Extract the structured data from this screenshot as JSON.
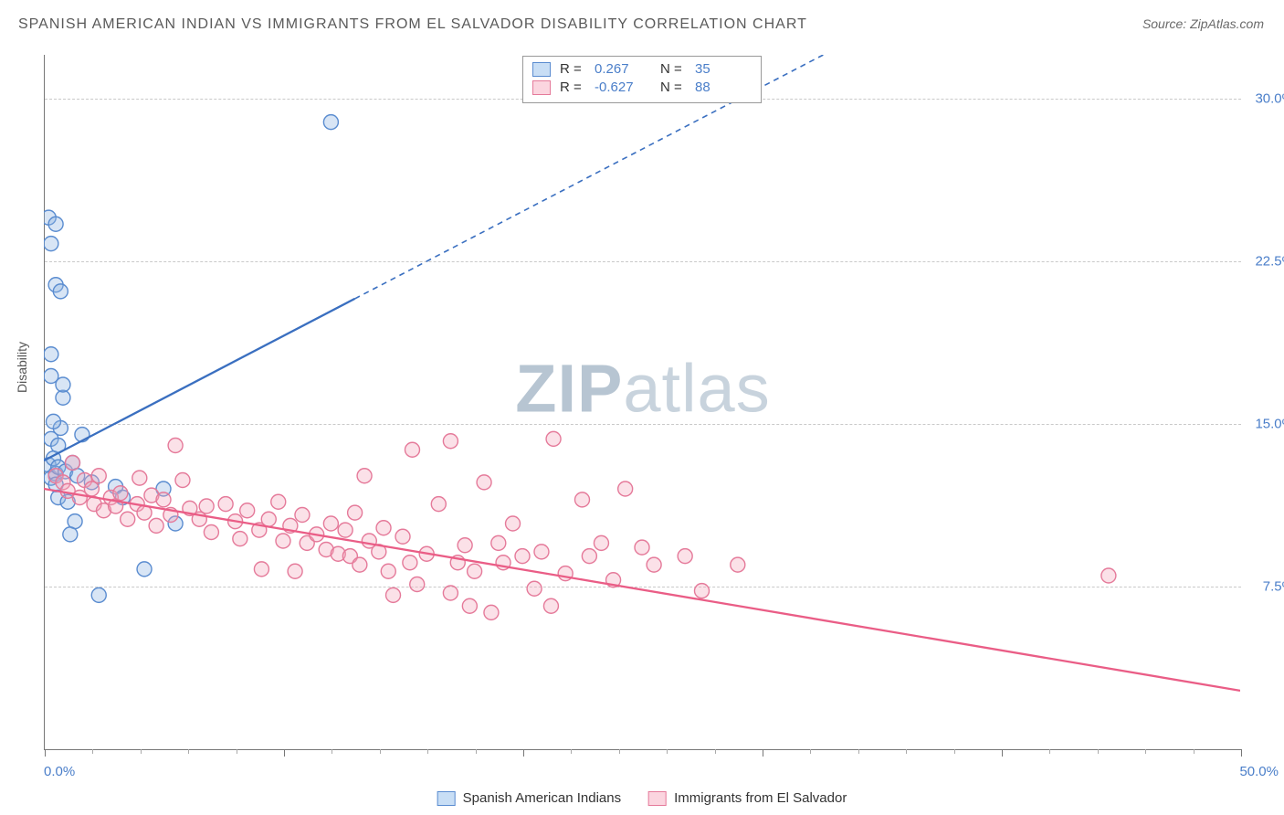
{
  "title": "SPANISH AMERICAN INDIAN VS IMMIGRANTS FROM EL SALVADOR DISABILITY CORRELATION CHART",
  "source": "Source: ZipAtlas.com",
  "watermark": {
    "a": "ZIP",
    "b": "atlas"
  },
  "ylabel": "Disability",
  "chart": {
    "type": "scatter",
    "xlim": [
      0,
      50
    ],
    "ylim": [
      0,
      32
    ],
    "y_ticks": [
      7.5,
      15.0,
      22.5,
      30.0
    ],
    "y_tick_labels": [
      "7.5%",
      "15.0%",
      "22.5%",
      "30.0%"
    ],
    "x_ticks_major": [
      0,
      10,
      20,
      30,
      40,
      50
    ],
    "x_ticks_minor": [
      2,
      4,
      6,
      8,
      12,
      14,
      16,
      18,
      22,
      24,
      26,
      28,
      32,
      34,
      36,
      38,
      42,
      44,
      46,
      48
    ],
    "x_tick_labels": {
      "start": "0.0%",
      "end": "50.0%"
    },
    "background_color": "#ffffff",
    "grid_color": "#c9c9c9",
    "marker_radius": 8,
    "series": [
      {
        "name": "Spanish American Indians",
        "color_fill": "#8fb4e3",
        "color_stroke": "#5a8cd0",
        "R": "0.267",
        "N": "35",
        "trend": {
          "x1": 0,
          "y1": 13.3,
          "x2": 50,
          "y2": 42.0,
          "solid_until_x": 13,
          "color": "#3a6fc0"
        },
        "points": [
          [
            0.2,
            13.1
          ],
          [
            0.3,
            12.5
          ],
          [
            0.3,
            14.3
          ],
          [
            0.4,
            13.4
          ],
          [
            0.5,
            12.7
          ],
          [
            0.6,
            13.0
          ],
          [
            0.7,
            14.8
          ],
          [
            0.4,
            15.1
          ],
          [
            0.6,
            14.0
          ],
          [
            0.8,
            16.2
          ],
          [
            0.8,
            16.8
          ],
          [
            0.3,
            18.2
          ],
          [
            0.5,
            12.2
          ],
          [
            0.6,
            11.6
          ],
          [
            0.9,
            12.8
          ],
          [
            1.2,
            13.2
          ],
          [
            1.0,
            11.4
          ],
          [
            1.3,
            10.5
          ],
          [
            1.1,
            9.9
          ],
          [
            1.6,
            14.5
          ],
          [
            1.4,
            12.6
          ],
          [
            0.5,
            21.4
          ],
          [
            0.7,
            21.1
          ],
          [
            0.3,
            23.3
          ],
          [
            0.2,
            24.5
          ],
          [
            0.5,
            24.2
          ],
          [
            0.3,
            17.2
          ],
          [
            2.0,
            12.3
          ],
          [
            3.0,
            12.1
          ],
          [
            5.0,
            12.0
          ],
          [
            5.5,
            10.4
          ],
          [
            4.2,
            8.3
          ],
          [
            2.3,
            7.1
          ],
          [
            12.0,
            28.9
          ],
          [
            3.3,
            11.6
          ]
        ]
      },
      {
        "name": "Immigrants from El Salvador",
        "color_fill": "#f4a9bd",
        "color_stroke": "#e57a9a",
        "R": "-0.627",
        "N": "88",
        "trend": {
          "x1": 0,
          "y1": 12.0,
          "x2": 50,
          "y2": 2.7,
          "solid_until_x": 50,
          "color": "#ea5d86"
        },
        "points": [
          [
            0.5,
            12.6
          ],
          [
            0.8,
            12.3
          ],
          [
            1.0,
            11.9
          ],
          [
            1.2,
            13.2
          ],
          [
            1.5,
            11.6
          ],
          [
            1.7,
            12.4
          ],
          [
            2.0,
            12.0
          ],
          [
            2.1,
            11.3
          ],
          [
            2.3,
            12.6
          ],
          [
            2.5,
            11.0
          ],
          [
            2.8,
            11.6
          ],
          [
            3.0,
            11.2
          ],
          [
            3.2,
            11.8
          ],
          [
            3.5,
            10.6
          ],
          [
            3.9,
            11.3
          ],
          [
            4.0,
            12.5
          ],
          [
            4.2,
            10.9
          ],
          [
            4.5,
            11.7
          ],
          [
            4.7,
            10.3
          ],
          [
            5.0,
            11.5
          ],
          [
            5.3,
            10.8
          ],
          [
            5.5,
            14.0
          ],
          [
            5.8,
            12.4
          ],
          [
            6.1,
            11.1
          ],
          [
            6.5,
            10.6
          ],
          [
            6.8,
            11.2
          ],
          [
            7.0,
            10.0
          ],
          [
            7.6,
            11.3
          ],
          [
            8.0,
            10.5
          ],
          [
            8.2,
            9.7
          ],
          [
            8.5,
            11.0
          ],
          [
            9.0,
            10.1
          ],
          [
            9.1,
            8.3
          ],
          [
            9.4,
            10.6
          ],
          [
            9.8,
            11.4
          ],
          [
            10.0,
            9.6
          ],
          [
            10.3,
            10.3
          ],
          [
            10.5,
            8.2
          ],
          [
            10.8,
            10.8
          ],
          [
            11.0,
            9.5
          ],
          [
            11.4,
            9.9
          ],
          [
            11.8,
            9.2
          ],
          [
            12.0,
            10.4
          ],
          [
            12.3,
            9.0
          ],
          [
            12.6,
            10.1
          ],
          [
            12.8,
            8.9
          ],
          [
            13.0,
            10.9
          ],
          [
            13.2,
            8.5
          ],
          [
            13.4,
            12.6
          ],
          [
            13.6,
            9.6
          ],
          [
            14.0,
            9.1
          ],
          [
            14.2,
            10.2
          ],
          [
            14.4,
            8.2
          ],
          [
            14.6,
            7.1
          ],
          [
            15.0,
            9.8
          ],
          [
            15.3,
            8.6
          ],
          [
            15.4,
            13.8
          ],
          [
            15.6,
            7.6
          ],
          [
            16.0,
            9.0
          ],
          [
            16.5,
            11.3
          ],
          [
            17.0,
            14.2
          ],
          [
            17.0,
            7.2
          ],
          [
            17.3,
            8.6
          ],
          [
            17.6,
            9.4
          ],
          [
            17.8,
            6.6
          ],
          [
            18.0,
            8.2
          ],
          [
            18.4,
            12.3
          ],
          [
            18.7,
            6.3
          ],
          [
            19.0,
            9.5
          ],
          [
            19.2,
            8.6
          ],
          [
            19.6,
            10.4
          ],
          [
            20.0,
            8.9
          ],
          [
            20.5,
            7.4
          ],
          [
            20.8,
            9.1
          ],
          [
            21.2,
            6.6
          ],
          [
            21.3,
            14.3
          ],
          [
            21.8,
            8.1
          ],
          [
            22.5,
            11.5
          ],
          [
            22.8,
            8.9
          ],
          [
            23.3,
            9.5
          ],
          [
            23.8,
            7.8
          ],
          [
            24.3,
            12.0
          ],
          [
            25.0,
            9.3
          ],
          [
            25.5,
            8.5
          ],
          [
            26.8,
            8.9
          ],
          [
            27.5,
            7.3
          ],
          [
            44.5,
            8.0
          ],
          [
            29.0,
            8.5
          ]
        ]
      }
    ]
  },
  "legend_top": {
    "rlabel": "R =",
    "nlabel": "N ="
  },
  "footer": {
    "left": "Spanish American Indians",
    "right": "Immigrants from El Salvador"
  }
}
